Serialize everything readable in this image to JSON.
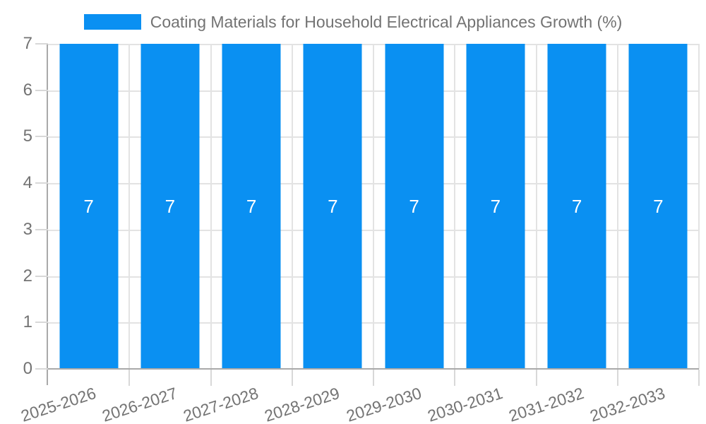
{
  "chart_data": {
    "type": "bar",
    "title": "Coating Materials for Household Electrical Appliances Growth (%)",
    "categories": [
      "2025-2026",
      "2026-2027",
      "2027-2028",
      "2028-2029",
      "2029-2030",
      "2030-2031",
      "2031-2032",
      "2032-2033"
    ],
    "values": [
      7,
      7,
      7,
      7,
      7,
      7,
      7,
      7
    ],
    "bar_labels": [
      "7",
      "7",
      "7",
      "7",
      "7",
      "7",
      "7",
      "7"
    ],
    "xlabel": "",
    "ylabel": "",
    "ylim": [
      0,
      7
    ],
    "y_ticks": [
      0,
      1,
      2,
      3,
      4,
      5,
      6,
      7
    ],
    "grid": true,
    "legend_position": "top",
    "colors": {
      "bar": "#0a90f2",
      "gridline": "#e3e3e3",
      "tick": "#d8d8d8",
      "axis_line": "#a9a9a9",
      "text": "#737373",
      "bar_label_text": "#ffffff",
      "background": "#ffffff"
    }
  },
  "legend": {
    "label": "Coating Materials for Household Electrical Appliances Growth (%)",
    "swatch_color": "#0a90f2"
  }
}
